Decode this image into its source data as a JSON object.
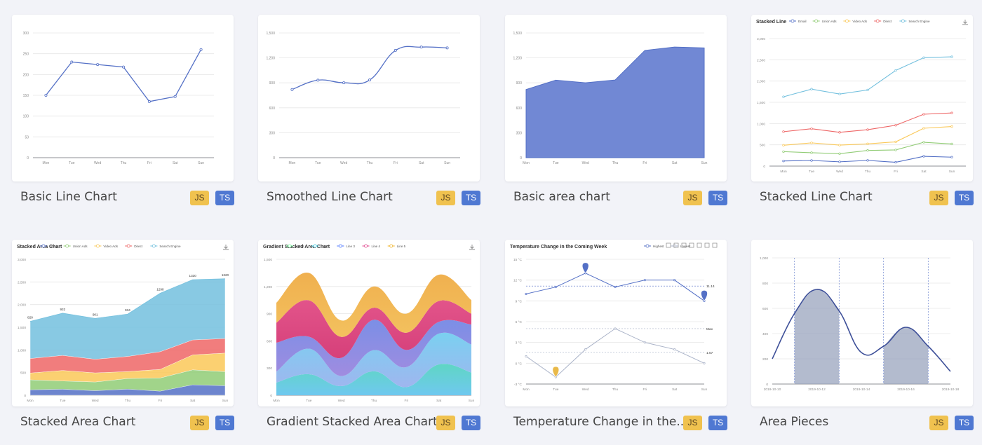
{
  "gallery": {
    "items": [
      {
        "title": "Basic Line Chart",
        "js": "JS",
        "ts": "TS"
      },
      {
        "title": "Smoothed Line Chart",
        "js": "JS",
        "ts": "TS"
      },
      {
        "title": "Basic area chart",
        "js": "JS",
        "ts": "TS"
      },
      {
        "title": "Stacked Line Chart",
        "js": "JS",
        "ts": "TS"
      },
      {
        "title": "Stacked Area Chart",
        "js": "JS",
        "ts": "TS"
      },
      {
        "title": "Gradient Stacked Area Chart",
        "js": "JS",
        "ts": "TS"
      },
      {
        "title": "Temperature Change in the...",
        "js": "JS",
        "ts": "TS"
      },
      {
        "title": "Area Pieces",
        "js": "JS",
        "ts": "TS"
      }
    ]
  },
  "colors": {
    "accent": "#5470c6",
    "js_badge": "#f0c24f",
    "ts_badge": "#4f78d2",
    "background": "#f2f3f8"
  },
  "icons": {
    "download": "download-icon"
  },
  "chart_data": [
    {
      "type": "line",
      "days": [
        "Mon",
        "Tue",
        "Wed",
        "Thu",
        "Fri",
        "Sat",
        "Sun"
      ],
      "ylim": [
        0,
        300
      ],
      "yticks": [
        0,
        50,
        100,
        150,
        200,
        250,
        300
      ],
      "series": [
        {
          "values": [
            150,
            230,
            224,
            218,
            135,
            147,
            260
          ]
        }
      ]
    },
    {
      "type": "line",
      "smooth": true,
      "days": [
        "Mon",
        "Tue",
        "Wed",
        "Thu",
        "Fri",
        "Sat",
        "Sun"
      ],
      "ylim": [
        0,
        1500
      ],
      "yticks": [
        0,
        300,
        600,
        900,
        1200,
        1500
      ],
      "ytick_labels": [
        "0",
        "300",
        "600",
        "900",
        "1,200",
        "1,500"
      ],
      "series": [
        {
          "values": [
            820,
            932,
            901,
            934,
            1290,
            1330,
            1320
          ]
        }
      ]
    },
    {
      "type": "area",
      "days": [
        "Mon",
        "Tue",
        "Wed",
        "Thu",
        "Fri",
        "Sat",
        "Sun"
      ],
      "ylim": [
        0,
        1500
      ],
      "yticks": [
        0,
        300,
        600,
        900,
        1200,
        1500
      ],
      "ytick_labels": [
        "0",
        "300",
        "600",
        "900",
        "1,200",
        "1,500"
      ],
      "series": [
        {
          "values": [
            820,
            932,
            901,
            934,
            1290,
            1330,
            1320
          ]
        }
      ]
    },
    {
      "type": "line",
      "title": "Stacked Line",
      "days": [
        "Mon",
        "Tue",
        "Wed",
        "Thu",
        "Fri",
        "Sat",
        "Sun"
      ],
      "ylim": [
        0,
        3000
      ],
      "yticks": [
        0,
        500,
        1000,
        1500,
        2000,
        2500,
        3000
      ],
      "ytick_labels": [
        "0",
        "500",
        "1,000",
        "1,500",
        "2,000",
        "2,500",
        "3,000"
      ],
      "legend": [
        "Email",
        "Union Ads",
        "Video Ads",
        "Direct",
        "Search Engine"
      ],
      "series": [
        {
          "name": "Email",
          "color": "#5470c6",
          "values": [
            120,
            132,
            101,
            134,
            90,
            230,
            210
          ]
        },
        {
          "name": "Union Ads",
          "color": "#91cc75",
          "values": [
            220,
            182,
            191,
            234,
            290,
            330,
            310
          ]
        },
        {
          "name": "Video Ads",
          "color": "#fac858",
          "values": [
            150,
            232,
            201,
            154,
            190,
            330,
            410
          ]
        },
        {
          "name": "Direct",
          "color": "#ee6666",
          "values": [
            320,
            332,
            301,
            334,
            390,
            330,
            320
          ]
        },
        {
          "name": "Search Engine",
          "color": "#73c0de",
          "values": [
            820,
            932,
            901,
            934,
            1290,
            1330,
            1320
          ]
        }
      ]
    },
    {
      "type": "area",
      "title": "Stacked Area Chart",
      "days": [
        "Mon",
        "Tue",
        "Wed",
        "Thu",
        "Fri",
        "Sat",
        "Sun"
      ],
      "ylim": [
        0,
        3000
      ],
      "yticks": [
        0,
        500,
        1000,
        1500,
        2000,
        2500,
        3000
      ],
      "ytick_labels": [
        "0",
        "500",
        "1,000",
        "1,500",
        "2,000",
        "2,500",
        "3,000"
      ],
      "legend": [
        "Email",
        "Union Ads",
        "Video Ads",
        "Direct",
        "Search Engine"
      ],
      "series": [
        {
          "name": "Email",
          "color": "#5470c6",
          "values": [
            120,
            132,
            101,
            134,
            90,
            230,
            210
          ]
        },
        {
          "name": "Union Ads",
          "color": "#91cc75",
          "values": [
            220,
            182,
            191,
            234,
            290,
            330,
            310
          ]
        },
        {
          "name": "Video Ads",
          "color": "#fac858",
          "values": [
            150,
            232,
            201,
            154,
            190,
            330,
            410
          ]
        },
        {
          "name": "Direct",
          "color": "#ee6666",
          "values": [
            320,
            332,
            301,
            334,
            390,
            330,
            320
          ]
        },
        {
          "name": "Search Engine",
          "color": "#73c0de",
          "values": [
            820,
            932,
            901,
            934,
            1290,
            1330,
            1320
          ]
        }
      ],
      "top_labels": [
        "820",
        "932",
        "901",
        "934",
        "1290",
        "1330",
        "1320"
      ]
    },
    {
      "type": "area",
      "smooth": true,
      "title": "Gradient Stacked Area Chart",
      "days": [
        "Mon",
        "Tue",
        "Wed",
        "Thu",
        "Fri",
        "Sat",
        "Sun"
      ],
      "ylim": [
        0,
        1500
      ],
      "yticks": [
        0,
        300,
        600,
        900,
        1200,
        1500
      ],
      "ytick_labels": [
        "0",
        "300",
        "600",
        "900",
        "1,200",
        "1,500"
      ],
      "legend": [
        "Line 1",
        "Line 2",
        "Line 3",
        "Line 4",
        "Line 5"
      ],
      "series": [
        {
          "name": "Line 1",
          "color": "#80ffa5",
          "values": [
            140,
            232,
            101,
            264,
            90,
            340,
            250
          ]
        },
        {
          "name": "Line 2",
          "color": "#00ddff",
          "values": [
            120,
            282,
            111,
            234,
            220,
            340,
            310
          ]
        },
        {
          "name": "Line 3",
          "color": "#4d77ff",
          "values": [
            320,
            132,
            201,
            334,
            190,
            130,
            220
          ]
        },
        {
          "name": "Line 4",
          "color": "#ff0087",
          "values": [
            220,
            402,
            231,
            134,
            190,
            230,
            120
          ]
        },
        {
          "name": "Line 5",
          "color": "#ffbf00",
          "values": [
            220,
            302,
            181,
            234,
            210,
            290,
            150
          ]
        }
      ]
    },
    {
      "type": "line",
      "title": "Temperature Change in the Coming Week",
      "days": [
        "Mon",
        "Tue",
        "Wed",
        "Thu",
        "Fri",
        "Sat",
        "Sun"
      ],
      "ylim": [
        -3,
        15
      ],
      "yticks": [
        -3,
        0,
        3,
        6,
        9,
        12,
        15
      ],
      "ytick_labels": [
        "-3 °C",
        "0 °C",
        "3 °C",
        "6 °C",
        "9 °C",
        "12 °C",
        "15 °C"
      ],
      "legend": [
        "Highest",
        "Lowest"
      ],
      "series": [
        {
          "name": "Highest",
          "color": "#5470c6",
          "values": [
            10,
            11,
            13,
            11,
            12,
            12,
            9
          ]
        },
        {
          "name": "Lowest",
          "color": "#aab3c8",
          "values": [
            1,
            -2,
            2,
            5,
            3,
            2,
            0
          ]
        }
      ],
      "annotations": [
        "11.14",
        "Max",
        "1.57"
      ]
    },
    {
      "type": "line",
      "smooth": true,
      "title": "Area Pieces",
      "x": [
        "2019-10-10",
        "2019-10-11",
        "2019-10-12",
        "2019-10-13",
        "2019-10-14",
        "2019-10-15",
        "2019-10-16",
        "2019-10-17",
        "2019-10-18"
      ],
      "xtick_labels": [
        "2019-10-10",
        "2019-10-12",
        "2019-10-14",
        "2019-10-16",
        "2019-10-18"
      ],
      "ylim": [
        0,
        1000
      ],
      "yticks": [
        0,
        200,
        400,
        600,
        800,
        1000
      ],
      "ytick_labels": [
        "0",
        "200",
        "400",
        "600",
        "800",
        "1,000"
      ],
      "series": [
        {
          "values": [
            200,
            560,
            750,
            580,
            250,
            300,
            450,
            300,
            100
          ]
        }
      ],
      "pieces": [
        [
          "2019-10-11",
          "2019-10-13"
        ],
        [
          "2019-10-15",
          "2019-10-17"
        ]
      ]
    }
  ]
}
